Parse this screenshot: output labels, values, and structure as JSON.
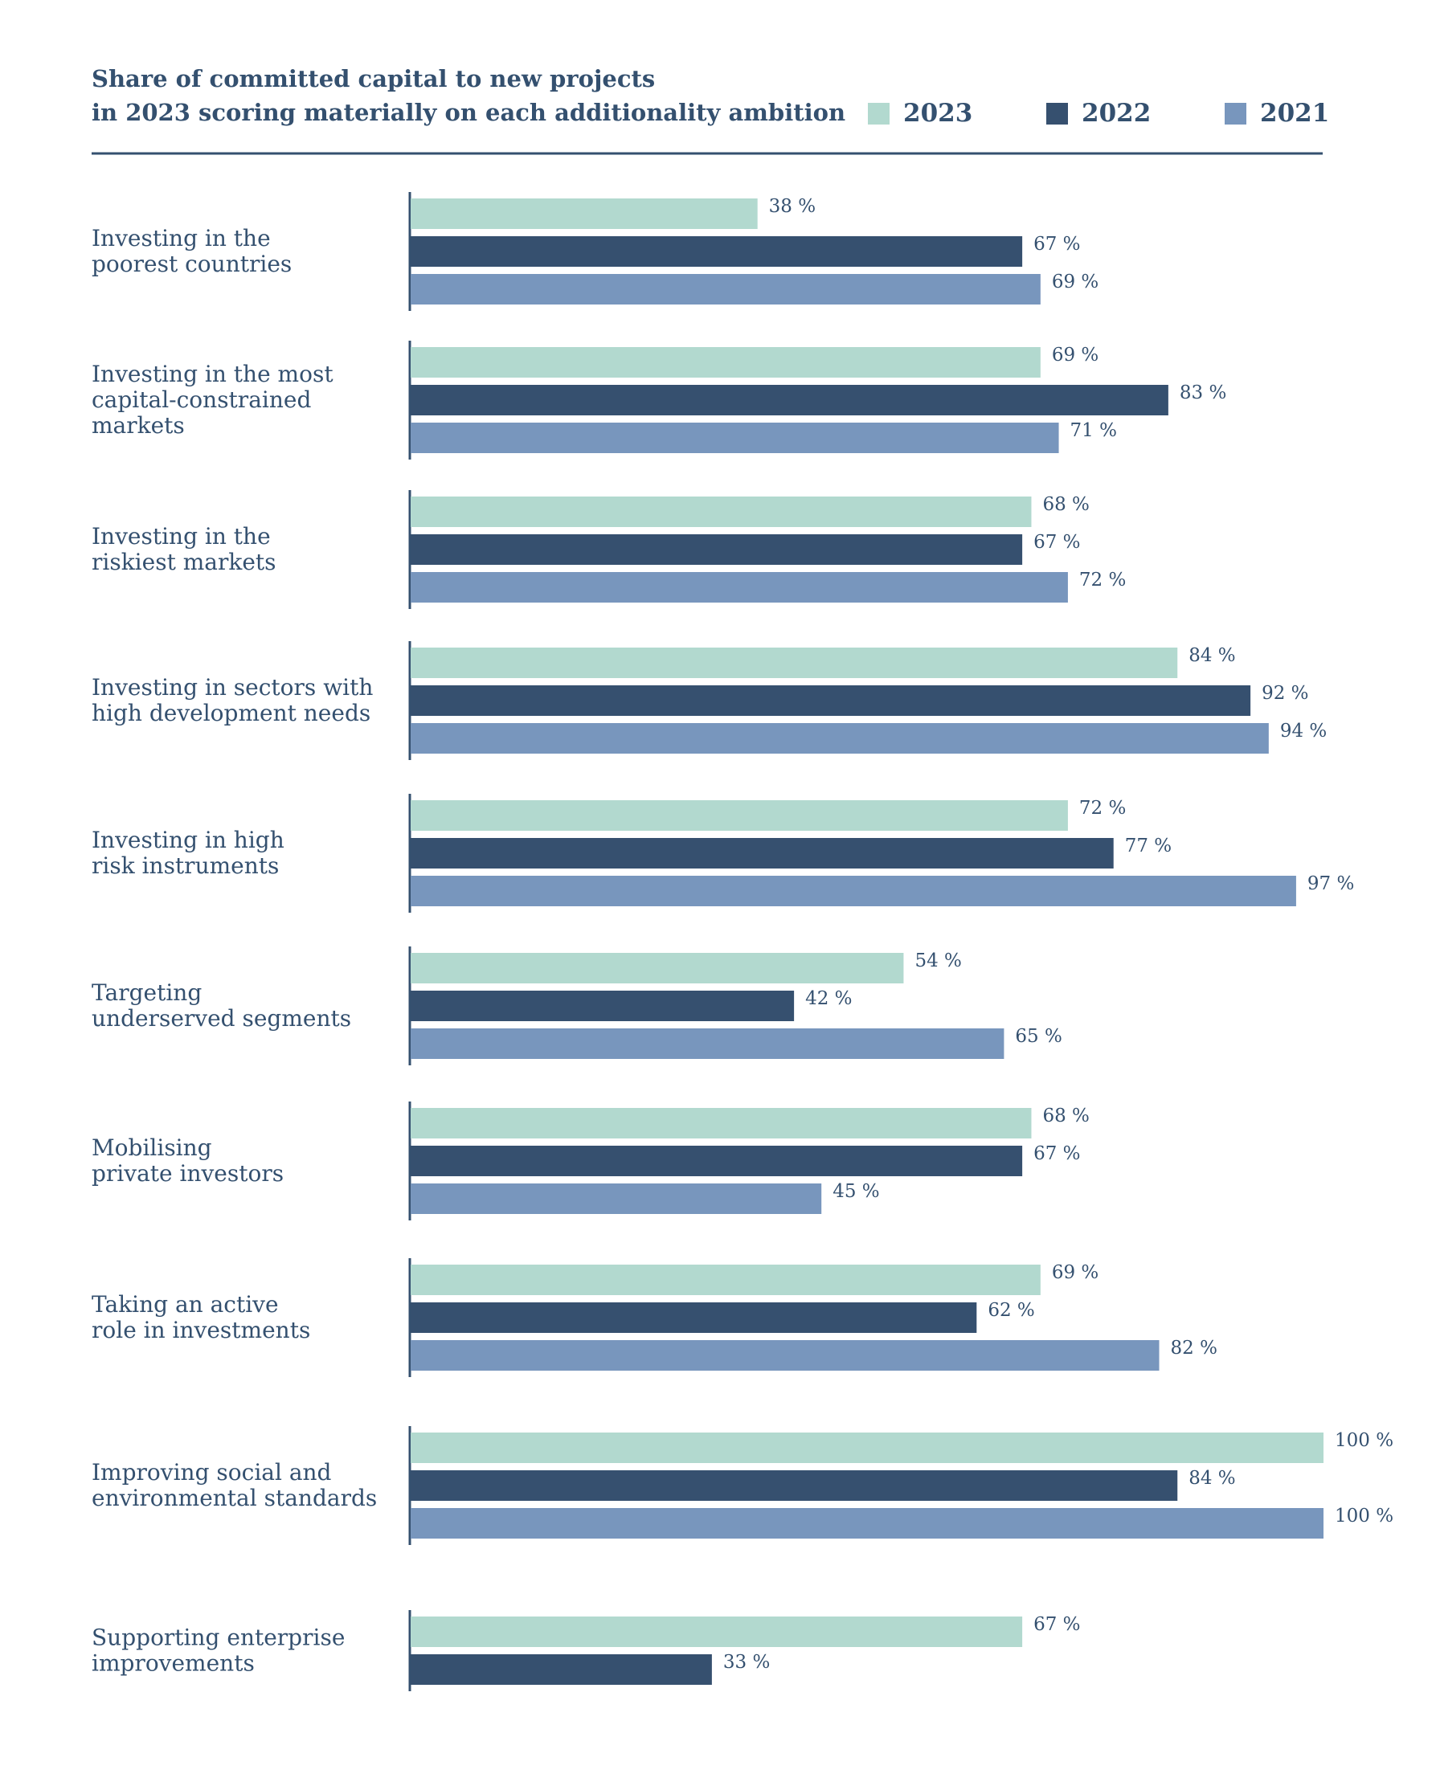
{
  "chart_data": {
    "type": "bar",
    "orientation": "horizontal",
    "title_lines": [
      "Share of committed capital to new projects",
      "in 2023 scoring materially on each additionality ambition"
    ],
    "legend_position": "top-right",
    "value_suffix": " %",
    "xlim": [
      0,
      100
    ],
    "series": [
      {
        "name": "2023",
        "color": "#b2d9cf",
        "values": [
          38,
          69,
          68,
          84,
          72,
          54,
          68,
          69,
          100,
          67
        ]
      },
      {
        "name": "2022",
        "color": "#36506f",
        "values": [
          67,
          83,
          67,
          92,
          77,
          42,
          67,
          62,
          84,
          33
        ]
      },
      {
        "name": "2021",
        "color": "#7896bd",
        "values": [
          69,
          71,
          72,
          94,
          97,
          65,
          45,
          82,
          100,
          null
        ]
      }
    ],
    "categories": [
      [
        "Investing in the",
        "poorest countries"
      ],
      [
        "Investing in the most",
        "capital-constrained",
        "markets"
      ],
      [
        "Investing in the",
        "riskiest markets"
      ],
      [
        "Investing in sectors with",
        "high development needs"
      ],
      [
        "Investing in high",
        "risk instruments"
      ],
      [
        "Targeting",
        "underserved segments"
      ],
      [
        "Mobilising",
        "private investors"
      ],
      [
        "Taking an active",
        "role in investments"
      ],
      [
        "Improving social and",
        "environmental standards"
      ],
      [
        "Supporting enterprise",
        "improvements"
      ]
    ],
    "colors": {
      "text": "#34506f",
      "axis": "#34506f",
      "rule": "#34506f"
    }
  }
}
